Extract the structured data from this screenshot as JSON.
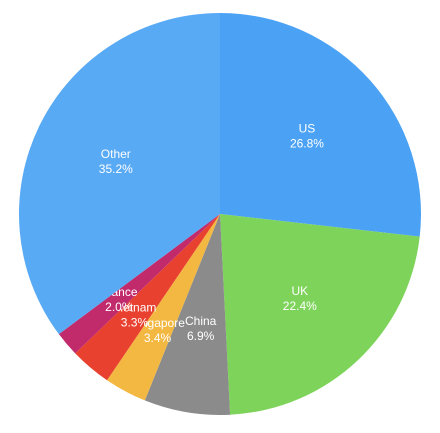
{
  "chart_data": {
    "type": "pie",
    "categories": [
      "US",
      "UK",
      "China",
      "Singapore",
      "Vietnam",
      "France",
      "Other"
    ],
    "values": [
      26.8,
      22.4,
      6.9,
      3.4,
      3.3,
      2.0,
      35.2
    ],
    "value_labels": [
      "26.8%",
      "22.4%",
      "6.9%",
      "3.4%",
      "3.3%",
      "2.0%",
      "35.2%"
    ],
    "colors": [
      "#4ba2f4",
      "#7ed35b",
      "#8b8b8b",
      "#f3b841",
      "#e8412f",
      "#c12b6c",
      "#59aaf5"
    ]
  }
}
